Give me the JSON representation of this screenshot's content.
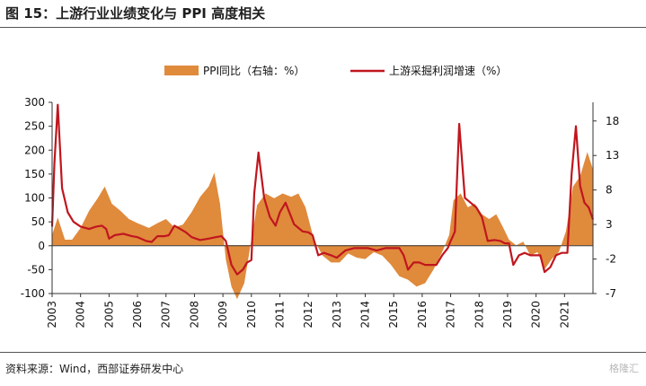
{
  "figure": {
    "title": "图 15：上游行业业绩变化与 PPI 高度相关",
    "source": "资料来源：Wind，西部证券研发中心",
    "watermark": "格隆汇"
  },
  "chart_data": {
    "type": "line",
    "x_unit": "year",
    "x_ticks": [
      "2003",
      "2004",
      "2005",
      "2006",
      "2007",
      "2008",
      "2009",
      "2010",
      "2011",
      "2012",
      "2013",
      "2014",
      "2015",
      "2016",
      "2017",
      "2018",
      "2019",
      "2020",
      "2021"
    ],
    "left_axis": {
      "ylim": [
        -100,
        300
      ],
      "ticks": [
        300,
        250,
        200,
        150,
        100,
        50,
        0,
        -50,
        -100
      ]
    },
    "right_axis": {
      "ylim": [
        -7,
        20.7
      ],
      "ticks": [
        18,
        13,
        8,
        3,
        -2,
        -7
      ]
    },
    "legend_position": "top",
    "colors": {
      "area": "#E08A3C",
      "line": "#C0161E"
    },
    "series": [
      {
        "name": "PPI同比（右轴：%）",
        "type": "area",
        "axis": "right",
        "x": [
          2003.0,
          2003.2,
          2003.45,
          2003.7,
          2004.0,
          2004.3,
          2004.6,
          2004.85,
          2005.1,
          2005.4,
          2005.7,
          2006.0,
          2006.4,
          2006.7,
          2007.0,
          2007.3,
          2007.6,
          2007.9,
          2008.2,
          2008.5,
          2008.7,
          2008.9,
          2009.1,
          2009.3,
          2009.5,
          2009.75,
          2010.0,
          2010.2,
          2010.5,
          2010.8,
          2011.1,
          2011.4,
          2011.65,
          2011.9,
          2012.2,
          2012.5,
          2012.8,
          2013.1,
          2013.4,
          2013.7,
          2014.0,
          2014.3,
          2014.6,
          2014.9,
          2015.2,
          2015.5,
          2015.8,
          2016.1,
          2016.4,
          2016.7,
          2016.95,
          2017.1,
          2017.35,
          2017.6,
          2017.85,
          2018.1,
          2018.35,
          2018.6,
          2018.85,
          2019.05,
          2019.3,
          2019.55,
          2019.8,
          2020.05,
          2020.3,
          2020.55,
          2020.8,
          2021.05,
          2021.3,
          2021.55,
          2021.8,
          2022.0
        ],
        "values": [
          1.5,
          4.0,
          0.8,
          0.8,
          2.5,
          5.0,
          6.8,
          8.5,
          6.0,
          5.0,
          3.8,
          3.2,
          2.5,
          3.2,
          3.8,
          2.6,
          3.0,
          4.8,
          7.0,
          8.5,
          10.5,
          6.0,
          -2.0,
          -6.0,
          -7.8,
          -5.5,
          0.8,
          5.8,
          7.5,
          6.8,
          7.5,
          7.0,
          7.5,
          5.5,
          0.8,
          -1.5,
          -2.5,
          -2.5,
          -1.2,
          -1.8,
          -2.0,
          -1.0,
          -1.5,
          -2.8,
          -4.5,
          -5.0,
          -6.0,
          -5.5,
          -3.5,
          -1.0,
          1.5,
          6.5,
          7.5,
          5.5,
          6.0,
          4.5,
          3.8,
          4.5,
          2.5,
          0.8,
          0.0,
          0.5,
          -1.5,
          -1.0,
          -3.5,
          -2.0,
          -1.0,
          2.0,
          8.5,
          10.0,
          13.5,
          11.0
        ]
      },
      {
        "name": "上游采掘利润增速（%）",
        "type": "line",
        "axis": "left",
        "x": [
          2003.0,
          2003.08,
          2003.2,
          2003.35,
          2003.55,
          2003.75,
          2004.0,
          2004.3,
          2004.55,
          2004.75,
          2004.9,
          2005.0,
          2005.2,
          2005.5,
          2005.8,
          2006.0,
          2006.3,
          2006.5,
          2006.7,
          2006.95,
          2007.1,
          2007.3,
          2007.5,
          2007.7,
          2007.9,
          2008.2,
          2008.5,
          2008.75,
          2008.95,
          2009.1,
          2009.3,
          2009.5,
          2009.7,
          2009.85,
          2010.0,
          2010.1,
          2010.25,
          2010.45,
          2010.65,
          2010.85,
          2011.0,
          2011.2,
          2011.5,
          2011.8,
          2012.0,
          2012.15,
          2012.35,
          2012.55,
          2012.8,
          2013.0,
          2013.3,
          2013.6,
          2013.9,
          2014.1,
          2014.4,
          2014.7,
          2014.95,
          2015.2,
          2015.35,
          2015.5,
          2015.7,
          2015.9,
          2016.1,
          2016.3,
          2016.5,
          2016.7,
          2016.9,
          2017.0,
          2017.08,
          2017.15,
          2017.3,
          2017.5,
          2017.7,
          2017.9,
          2018.1,
          2018.3,
          2018.55,
          2018.75,
          2018.9,
          2019.05,
          2019.2,
          2019.4,
          2019.6,
          2019.8,
          2020.0,
          2020.15,
          2020.3,
          2020.5,
          2020.7,
          2020.9,
          2021.1,
          2021.25,
          2021.4,
          2021.55,
          2021.7,
          2021.85,
          2022.0
        ],
        "values": [
          40,
          170,
          295,
          120,
          70,
          50,
          40,
          35,
          40,
          42,
          35,
          15,
          22,
          25,
          20,
          18,
          10,
          8,
          20,
          20,
          22,
          42,
          35,
          28,
          18,
          12,
          15,
          18,
          20,
          10,
          -40,
          -60,
          -50,
          -35,
          -30,
          110,
          195,
          100,
          60,
          42,
          70,
          90,
          45,
          30,
          28,
          22,
          -20,
          -15,
          -20,
          -25,
          -10,
          -5,
          -5,
          -5,
          -10,
          -5,
          -5,
          -5,
          -20,
          -50,
          -35,
          -35,
          -40,
          -40,
          -40,
          -20,
          -5,
          10,
          20,
          30,
          255,
          100,
          90,
          80,
          60,
          10,
          12,
          10,
          5,
          5,
          -40,
          -20,
          -15,
          -20,
          -20,
          -20,
          -55,
          -45,
          -20,
          -15,
          -15,
          150,
          250,
          125,
          90,
          80,
          55
        ]
      }
    ]
  }
}
